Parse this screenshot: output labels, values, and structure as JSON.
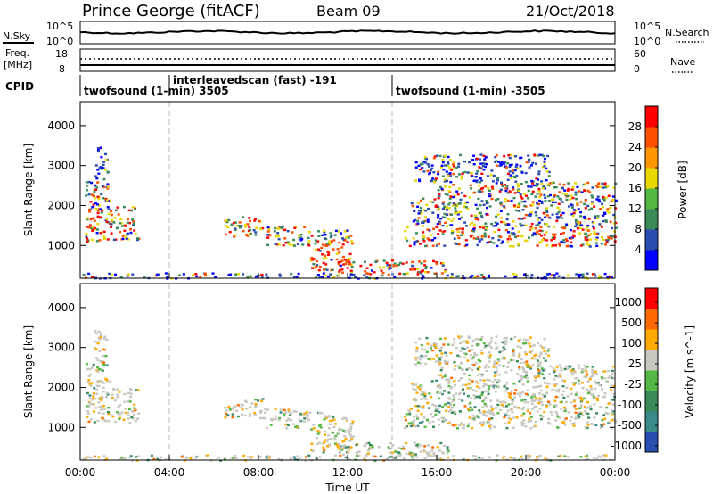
{
  "header": {
    "station": "Prince George (fitACF)",
    "beam": "Beam 09",
    "date": "21/Oct/2018"
  },
  "noise_panel": {
    "left_label": "N.Sky",
    "right_label": "N.Search",
    "left_ticks": [
      "10^5",
      "10^0"
    ],
    "right_ticks": [
      "10^5",
      "10^0"
    ]
  },
  "freq_panel": {
    "left_label_1": "Freq.",
    "left_label_2": "[MHz]",
    "right_label": "Nave",
    "left_ticks": [
      "18",
      "8"
    ],
    "right_ticks": [
      "60",
      "0"
    ]
  },
  "cpid": {
    "label": "CPID",
    "segments": [
      {
        "text": "twofsound (1-min) 3505",
        "start_h": 0
      },
      {
        "text": "interleavedscan (fast) -191",
        "start_h": 4
      },
      {
        "text": "twofsound (1-min) -3505",
        "start_h": 14
      }
    ]
  },
  "chart_data": [
    {
      "type": "heatmap",
      "title": "",
      "quantity": "Power",
      "ylabel": "Slant Range [km]",
      "colorbar_label": "Power [dB]",
      "colorbar_ticks": [
        "28",
        "24",
        "20",
        "16",
        "12",
        "8",
        "4"
      ],
      "colorbar_colors": [
        "#0000ff",
        "#2a4db0",
        "#3a8a5a",
        "#55b844",
        "#e8d800",
        "#ff9600",
        "#ff5000",
        "#ff0000"
      ],
      "ylim": [
        180,
        4600
      ],
      "yticks": [
        1000,
        2000,
        3000,
        4000
      ],
      "ytick_labels": [
        "1000",
        "2000",
        "3000",
        "4000"
      ],
      "xlim_hours": [
        0,
        24
      ]
    },
    {
      "type": "heatmap",
      "title": "",
      "quantity": "Velocity",
      "ylabel": "Slant Range [km]",
      "colorbar_label": "Velocity [m s^-1]",
      "colorbar_ticks": [
        "1000",
        "500",
        "100",
        "25",
        "-25",
        "-100",
        "-500",
        "-1000"
      ],
      "colorbar_colors": [
        "#2a4db0",
        "#3a8a8a",
        "#3a8a5a",
        "#55b844",
        "#c8c8c0",
        "#ffaa00",
        "#ff6a00",
        "#ff0000"
      ],
      "ylim": [
        180,
        4600
      ],
      "yticks": [
        1000,
        2000,
        3000,
        4000
      ],
      "ytick_labels": [
        "1000",
        "2000",
        "3000",
        "4000"
      ],
      "xlim_hours": [
        0,
        24
      ]
    }
  ],
  "x_axis": {
    "label": "Time UT",
    "ticks": [
      "00:00",
      "04:00",
      "08:00",
      "12:00",
      "16:00",
      "20:00",
      "00:00"
    ],
    "tick_hours": [
      0,
      4,
      8,
      12,
      16,
      20,
      24
    ]
  },
  "scatter_regions": [
    {
      "h0": 0.2,
      "h1": 1.3,
      "r0": 2000,
      "r1": 2700,
      "p": [
        0.35,
        0.45,
        0.2
      ]
    },
    {
      "h0": 0.6,
      "h1": 1.2,
      "r0": 2700,
      "r1": 3500,
      "p": [
        0.7,
        0.25,
        0.05
      ]
    },
    {
      "h0": 0.2,
      "h1": 2.6,
      "r0": 1100,
      "r1": 2000,
      "p": [
        0.15,
        0.4,
        0.45
      ]
    },
    {
      "h0": 6.4,
      "h1": 8.2,
      "r0": 1250,
      "r1": 1750,
      "p": [
        0.1,
        0.55,
        0.35
      ]
    },
    {
      "h0": 8.2,
      "h1": 10.3,
      "r0": 1000,
      "r1": 1500,
      "p": [
        0.2,
        0.45,
        0.35
      ]
    },
    {
      "h0": 10.3,
      "h1": 12.2,
      "r0": 400,
      "r1": 1300,
      "p": [
        0.05,
        0.3,
        0.65
      ]
    },
    {
      "h0": 11.5,
      "h1": 16.5,
      "r0": 300,
      "r1": 650,
      "p": [
        0.05,
        0.3,
        0.65
      ]
    },
    {
      "h0": 10.5,
      "h1": 12.0,
      "r0": 1200,
      "r1": 1400,
      "p": [
        0.6,
        0.35,
        0.05
      ]
    },
    {
      "h0": 14.5,
      "h1": 24.0,
      "r0": 1000,
      "r1": 1500,
      "p": [
        0.15,
        0.4,
        0.45
      ]
    },
    {
      "h0": 14.8,
      "h1": 24.0,
      "r0": 1500,
      "r1": 2200,
      "p": [
        0.35,
        0.5,
        0.15
      ]
    },
    {
      "h0": 16.0,
      "h1": 24.0,
      "r0": 2200,
      "r1": 2600,
      "p": [
        0.2,
        0.45,
        0.35
      ]
    },
    {
      "h0": 15.0,
      "h1": 21.0,
      "r0": 2600,
      "r1": 3300,
      "p": [
        0.6,
        0.3,
        0.1
      ]
    },
    {
      "h0": 0.0,
      "h1": 24.0,
      "r0": 190,
      "r1": 330,
      "p": [
        0.6,
        0.3,
        0.1
      ]
    }
  ]
}
